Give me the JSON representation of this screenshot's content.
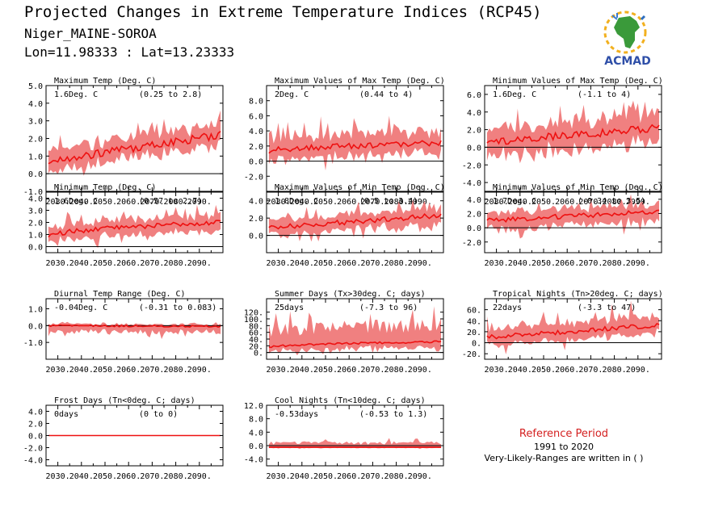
{
  "header": {
    "title": "Projected Changes in Extreme Temperature Indices (RCP45)",
    "location": "Niger_MAINE-SOROA",
    "coords": "Lon=11.98333 : Lat=13.23333"
  },
  "logo": {
    "text": "ACMAD",
    "icon": "africa-map-logo-icon"
  },
  "colors": {
    "range": "#f08080",
    "line": "#ee1111",
    "zero": "#000000",
    "ref": "#d42020"
  },
  "reference": {
    "title": "Reference Period",
    "years": "1991 to 2020",
    "note": "Very-Likely-Ranges are written in ( )"
  },
  "chart_data": [
    {
      "id": "tx",
      "type": "area",
      "title": "Maximum Temp (Deg. C)",
      "summary": "1.6Deg. C",
      "range_label": "(0.25 to 2.8)",
      "x_ticks": [
        "2030.",
        "2040.",
        "2050.",
        "2060.",
        "2070.",
        "2080.",
        "2090."
      ],
      "xlim": [
        2025,
        2100
      ],
      "ylim": [
        -1.0,
        5.0
      ],
      "y_ticks": [
        -1.0,
        0.0,
        1.0,
        2.0,
        3.0,
        4.0,
        5.0
      ],
      "y_tick_labels": [
        "-1.0",
        "0.0",
        "1.0",
        "2.0",
        "3.0",
        "4.0",
        "5.0"
      ],
      "median": {
        "start": 0.7,
        "end": 2.2,
        "shape": "linear"
      },
      "spread_low": 0.8,
      "spread_high": 0.9,
      "noise": 0.25
    },
    {
      "id": "txx",
      "type": "area",
      "title": "Maximum Values of Max Temp (Deg. C)",
      "summary": "2Deg. C",
      "range_label": "(0.44 to 4)",
      "x_ticks": [
        "2030.",
        "2040.",
        "2050.",
        "2060.",
        "2070.",
        "2080.",
        "2090."
      ],
      "xlim": [
        2025,
        2100
      ],
      "ylim": [
        -4.0,
        10.0
      ],
      "y_ticks": [
        -2.0,
        0.0,
        2.0,
        4.0,
        6.0,
        8.0
      ],
      "y_tick_labels": [
        "-2.0",
        "0.0",
        "2.0",
        "4.0",
        "6.0",
        "8.0"
      ],
      "median": {
        "start": 1.2,
        "end": 2.4,
        "shape": "sqrt"
      },
      "spread_low": 1.8,
      "spread_high": 2.2,
      "noise": 0.4
    },
    {
      "id": "txn",
      "type": "area",
      "title": "Minimum Values of Max Temp (Deg. C)",
      "summary": "1.6Deg. C",
      "range_label": "(-1.1 to 4)",
      "x_ticks": [
        "2030.",
        "2040.",
        "2050.",
        "2060.",
        "2070.",
        "2080.",
        "2090."
      ],
      "xlim": [
        2025,
        2100
      ],
      "ylim": [
        -5.0,
        7.0
      ],
      "y_ticks": [
        -4.0,
        -2.0,
        0.0,
        2.0,
        4.0,
        6.0
      ],
      "y_tick_labels": [
        "-4.0",
        "-2.0",
        "0.0",
        "2.0",
        "4.0",
        "6.0"
      ],
      "median": {
        "start": 0.6,
        "end": 2.2,
        "shape": "linear"
      },
      "spread_low": 2.2,
      "spread_high": 2.2,
      "noise": 0.45
    },
    {
      "id": "tn",
      "type": "area",
      "title": "Minimum Temp (Deg. C)",
      "summary": "1.6Deg. C",
      "range_label": "(0.57 to 2.7)",
      "x_ticks": [
        "2030.",
        "2040.",
        "2050.",
        "2060.",
        "2070.",
        "2080.",
        "2090."
      ],
      "xlim": [
        2025,
        2100
      ],
      "ylim": [
        -0.5,
        4.5
      ],
      "y_ticks": [
        0.0,
        1.0,
        2.0,
        3.0,
        4.0
      ],
      "y_tick_labels": [
        "0.0",
        "1.0",
        "2.0",
        "3.0",
        "4.0"
      ],
      "median": {
        "start": 0.8,
        "end": 2.0,
        "shape": "sqrt"
      },
      "spread_low": 0.9,
      "spread_high": 0.9,
      "noise": 0.2
    },
    {
      "id": "tnx",
      "type": "area",
      "title": "Maximum Values of Min Temp (Deg. C)",
      "summary": "1.8Deg. C",
      "range_label": "(0.5 to 3.4)",
      "x_ticks": [
        "2030.",
        "2040.",
        "2050.",
        "2060.",
        "2070.",
        "2080.",
        "2090."
      ],
      "xlim": [
        2025,
        2100
      ],
      "ylim": [
        -2.0,
        5.0
      ],
      "y_ticks": [
        0.0,
        2.0,
        4.0
      ],
      "y_tick_labels": [
        "0.0",
        "2.0",
        "4.0"
      ],
      "median": {
        "start": 0.9,
        "end": 2.3,
        "shape": "linear"
      },
      "spread_low": 1.2,
      "spread_high": 1.3,
      "noise": 0.3
    },
    {
      "id": "tnn",
      "type": "area",
      "title": "Minimum Values of Min Temp (Deg. C)",
      "summary": "1.7Deg. C",
      "range_label": "(-0.34 to 3.5)",
      "x_ticks": [
        "2030.",
        "2040.",
        "2050.",
        "2060.",
        "2070.",
        "2080.",
        "2090."
      ],
      "xlim": [
        2025,
        2100
      ],
      "ylim": [
        -3.5,
        5.0
      ],
      "y_ticks": [
        -2.0,
        0.0,
        2.0,
        4.0
      ],
      "y_tick_labels": [
        "-2.0",
        "0.0",
        "2.0",
        "4.0"
      ],
      "median": {
        "start": 1.0,
        "end": 2.3,
        "shape": "linear"
      },
      "spread_low": 1.8,
      "spread_high": 1.5,
      "noise": 0.35
    },
    {
      "id": "dtr",
      "type": "area",
      "title": "Diurnal Temp Range (Deg. C)",
      "summary": "-0.04Deg. C",
      "range_label": "(-0.31 to 0.083)",
      "x_ticks": [
        "2030.",
        "2040.",
        "2050.",
        "2060.",
        "2070.",
        "2080.",
        "2090."
      ],
      "xlim": [
        2025,
        2100
      ],
      "ylim": [
        -2.0,
        1.6
      ],
      "y_ticks": [
        -1.0,
        0.0,
        1.0
      ],
      "y_tick_labels": [
        "-1.0",
        "0.0",
        "1.0"
      ],
      "median": {
        "start": 0.0,
        "end": -0.05,
        "shape": "linear"
      },
      "spread_low": 0.5,
      "spread_high": 0.15,
      "noise": 0.05
    },
    {
      "id": "su",
      "type": "area",
      "title": "Summer Days (Tx>30deg. C; days)",
      "summary": "25days",
      "range_label": "(-7.3 to 96)",
      "x_ticks": [
        "2030.",
        "2040.",
        "2050.",
        "2060.",
        "2070.",
        "2080.",
        "2090."
      ],
      "xlim": [
        2025,
        2100
      ],
      "ylim": [
        -20,
        160
      ],
      "y_ticks": [
        0,
        20,
        40,
        60,
        80,
        100,
        120
      ],
      "y_tick_labels": [
        "0.",
        "20.",
        "40.",
        "60.",
        "80.",
        "100.",
        "120."
      ],
      "median": {
        "start": 15,
        "end": 32,
        "shape": "sqrt"
      },
      "spread_low": 20,
      "spread_high": 70,
      "noise": 3
    },
    {
      "id": "tr",
      "type": "area",
      "title": "Tropical Nights (Tn>20deg. C; days)",
      "summary": "22days",
      "range_label": "(-3.3 to 47)",
      "x_ticks": [
        "2030.",
        "2040.",
        "2050.",
        "2060.",
        "2070.",
        "2080.",
        "2090."
      ],
      "xlim": [
        2025,
        2100
      ],
      "ylim": [
        -30,
        80
      ],
      "y_ticks": [
        -20,
        0,
        20,
        40,
        60
      ],
      "y_tick_labels": [
        "-20.",
        "0.",
        "20.",
        "40.",
        "60."
      ],
      "median": {
        "start": 10,
        "end": 32,
        "shape": "linear"
      },
      "spread_low": 20,
      "spread_high": 25,
      "noise": 4
    },
    {
      "id": "fd",
      "type": "area",
      "title": "Frost Days (Tn<0deg. C; days)",
      "summary": "0days",
      "range_label": "(0 to 0)",
      "x_ticks": [
        "2030.",
        "2040.",
        "2050.",
        "2060.",
        "2070.",
        "2080.",
        "2090."
      ],
      "xlim": [
        2025,
        2100
      ],
      "ylim": [
        -5.0,
        5.0
      ],
      "y_ticks": [
        -4.0,
        -2.0,
        0.0,
        2.0,
        4.0
      ],
      "y_tick_labels": [
        "-4.0",
        "-2.0",
        "0.0",
        "2.0",
        "4.0"
      ],
      "median": {
        "start": 0,
        "end": 0,
        "shape": "linear"
      },
      "spread_low": 0,
      "spread_high": 0,
      "noise": 0
    },
    {
      "id": "tn10",
      "type": "area",
      "title": "Cool Nights (Tn<10deg. C; days)",
      "summary": "-0.53days",
      "range_label": "(-0.53 to 1.3)",
      "x_ticks": [
        "2030.",
        "2040.",
        "2050.",
        "2060.",
        "2070.",
        "2080.",
        "2090."
      ],
      "xlim": [
        2025,
        2100
      ],
      "ylim": [
        -6.0,
        12.0
      ],
      "y_ticks": [
        -4.0,
        0.0,
        4.0,
        8.0,
        12.0
      ],
      "y_tick_labels": [
        "-4.0",
        "0.0",
        "4.0",
        "8.0",
        "12.0"
      ],
      "median": {
        "start": -0.5,
        "end": -0.5,
        "shape": "linear"
      },
      "spread_low": 0.3,
      "spread_high": 1.8,
      "noise": 0
    }
  ]
}
